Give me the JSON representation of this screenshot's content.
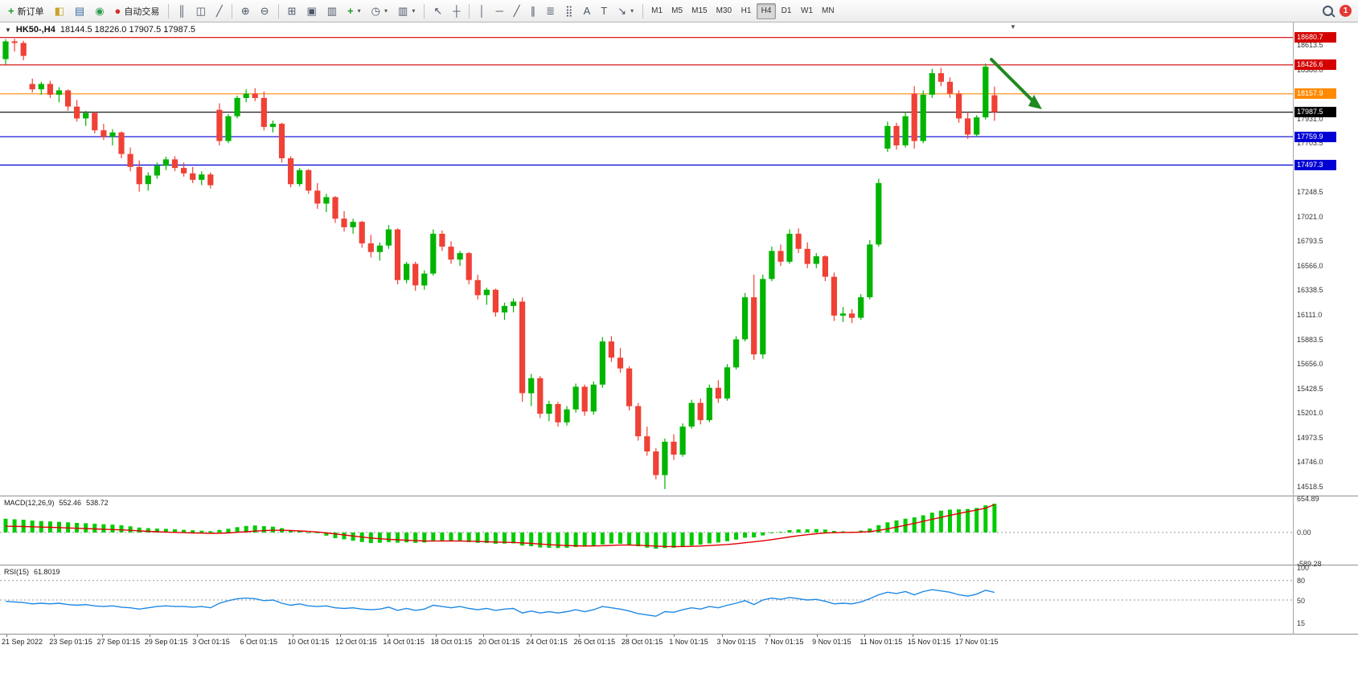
{
  "toolbar": {
    "new_order_label": "新订单",
    "autotrade_label": "自动交易",
    "timeframes": [
      "M1",
      "M5",
      "M15",
      "M30",
      "H1",
      "H4",
      "D1",
      "W1",
      "MN"
    ],
    "active_timeframe": "H4",
    "notification_count": "1"
  },
  "icons": {
    "new_order": "+",
    "market_watch": "◧",
    "data_window": "▤",
    "navigator": "◉",
    "autotrade": "●",
    "bars": "║",
    "candles": "◫",
    "line_chart": "╱",
    "zoom_in": "⊕",
    "zoom_out": "⊖",
    "tile": "⊞",
    "window_h": "▣",
    "window_v": "▥",
    "add": "+",
    "clock": "◷",
    "shift": "▥",
    "cursor": "↖",
    "crosshair": "┼",
    "vline": "│",
    "hline": "─",
    "trendline": "╱",
    "channel": "∥",
    "fibonacci": "≣",
    "shapes": "⣿",
    "text": "A",
    "label": "T",
    "arrows": "↘",
    "dropdown": "▾",
    "collapse": "▼",
    "shift_marker": "▼"
  },
  "chart": {
    "symbol_period": "HK50-,H4",
    "ohlc_text": "18144.5 18226.0 17907.5 17987.5"
  },
  "levels": [
    {
      "price": 18680.7,
      "label": "18680.7",
      "color": "#d40000"
    },
    {
      "price": 18426.6,
      "label": "18426.6",
      "color": "#d40000"
    },
    {
      "price": 18157.9,
      "label": "18157.9",
      "color": "#ff8a00"
    },
    {
      "price": 17987.5,
      "label": "17987.5",
      "color": "#000000"
    },
    {
      "price": 17759.9,
      "label": "17759.9",
      "color": "#0000d4"
    },
    {
      "price": 17497.3,
      "label": "17497.3",
      "color": "#0000d4"
    }
  ],
  "price_axis": {
    "labels": [
      "18613.5",
      "18386.0",
      "18158.5",
      "17931.0",
      "17703.5",
      "17476.0",
      "17248.5",
      "17021.0",
      "16793.5",
      "16566.0",
      "16338.5",
      "16111.0",
      "15883.5",
      "15656.0",
      "15428.5",
      "15201.0",
      "14973.5",
      "14746.0",
      "14518.5"
    ]
  },
  "macd_panel": {
    "title": "MACD(12,26,9)",
    "value_main": "552.46",
    "value_signal": "538.72",
    "axis_labels": [
      "654.89",
      "0.00",
      "-589.28"
    ]
  },
  "rsi_panel": {
    "title": "RSI(15)",
    "value": "61.8019",
    "axis_labels": [
      "100",
      "80",
      "50",
      "15"
    ]
  },
  "time_axis": {
    "labels": [
      "21 Sep 2022",
      "23 Sep 01:15",
      "27 Sep 01:15",
      "29 Sep 01:15",
      "3 Oct 01:15",
      "6 Oct 01:15",
      "10 Oct 01:15",
      "12 Oct 01:15",
      "14 Oct 01:15",
      "18 Oct 01:15",
      "20 Oct 01:15",
      "24 Oct 01:15",
      "26 Oct 01:15",
      "28 Oct 01:15",
      "1 Nov 01:15",
      "3 Nov 01:15",
      "7 Nov 01:15",
      "9 Nov 01:15",
      "11 Nov 01:15",
      "15 Nov 01:15",
      "17 Nov 01:15"
    ]
  },
  "colors": {
    "candle_up": "#00b400",
    "candle_down": "#ef4135",
    "macd_bar": "#00cc00",
    "macd_signal": "#e00000",
    "rsi_line": "#1e88e5",
    "arrow": "#1f8a1f",
    "grid_dash": "#999999"
  },
  "chart_data": {
    "type": "candlestick",
    "symbol": "HK50-",
    "period": "H4",
    "ylim": [
      14430,
      18820
    ],
    "ohlc": [
      [
        18480,
        18665,
        18430,
        18645
      ],
      [
        18645,
        18670,
        18550,
        18630
      ],
      [
        18630,
        18650,
        18470,
        18510
      ],
      [
        18250,
        18300,
        18170,
        18200
      ],
      [
        18200,
        18270,
        18150,
        18250
      ],
      [
        18250,
        18280,
        18120,
        18150
      ],
      [
        18150,
        18220,
        18080,
        18190
      ],
      [
        18190,
        18200,
        18000,
        18040
      ],
      [
        18040,
        18100,
        17900,
        17930
      ],
      [
        17930,
        18000,
        17860,
        17980
      ],
      [
        17980,
        17990,
        17790,
        17820
      ],
      [
        17820,
        17880,
        17730,
        17760
      ],
      [
        17760,
        17830,
        17680,
        17800
      ],
      [
        17800,
        17810,
        17560,
        17600
      ],
      [
        17600,
        17660,
        17440,
        17480
      ],
      [
        17480,
        17540,
        17250,
        17320
      ],
      [
        17320,
        17430,
        17260,
        17400
      ],
      [
        17400,
        17520,
        17370,
        17490
      ],
      [
        17490,
        17575,
        17450,
        17550
      ],
      [
        17550,
        17580,
        17440,
        17470
      ],
      [
        17470,
        17520,
        17390,
        17420
      ],
      [
        17420,
        17480,
        17330,
        17360
      ],
      [
        17360,
        17440,
        17310,
        17410
      ],
      [
        17410,
        17430,
        17280,
        17310
      ],
      [
        18010,
        18070,
        17680,
        17720
      ],
      [
        17720,
        17970,
        17700,
        17950
      ],
      [
        17950,
        18140,
        17930,
        18120
      ],
      [
        18120,
        18200,
        18080,
        18160
      ],
      [
        18160,
        18210,
        18090,
        18120
      ],
      [
        18120,
        18180,
        17820,
        17850
      ],
      [
        17850,
        17910,
        17800,
        17880
      ],
      [
        17880,
        17890,
        17520,
        17560
      ],
      [
        17560,
        17580,
        17290,
        17320
      ],
      [
        17320,
        17470,
        17300,
        17450
      ],
      [
        17450,
        17460,
        17230,
        17260
      ],
      [
        17260,
        17330,
        17090,
        17140
      ],
      [
        17140,
        17230,
        17060,
        17200
      ],
      [
        17200,
        17210,
        16960,
        17000
      ],
      [
        17000,
        17070,
        16880,
        16920
      ],
      [
        16920,
        17000,
        16860,
        16970
      ],
      [
        16970,
        16980,
        16730,
        16770
      ],
      [
        16770,
        16850,
        16640,
        16690
      ],
      [
        16690,
        16780,
        16610,
        16750
      ],
      [
        16750,
        16940,
        16720,
        16900
      ],
      [
        16900,
        16910,
        16390,
        16430
      ],
      [
        16430,
        16600,
        16400,
        16580
      ],
      [
        16580,
        16600,
        16330,
        16380
      ],
      [
        16380,
        16520,
        16340,
        16490
      ],
      [
        16490,
        16900,
        16470,
        16860
      ],
      [
        16860,
        16890,
        16700,
        16740
      ],
      [
        16740,
        16790,
        16580,
        16620
      ],
      [
        16620,
        16700,
        16560,
        16680
      ],
      [
        16680,
        16690,
        16390,
        16430
      ],
      [
        16430,
        16480,
        16250,
        16290
      ],
      [
        16290,
        16360,
        16200,
        16340
      ],
      [
        16340,
        16350,
        16090,
        16130
      ],
      [
        16130,
        16220,
        16060,
        16190
      ],
      [
        16190,
        16260,
        16130,
        16230
      ],
      [
        16230,
        16270,
        15300,
        15380
      ],
      [
        15380,
        15560,
        15260,
        15520
      ],
      [
        15520,
        15540,
        15150,
        15190
      ],
      [
        15190,
        15310,
        15120,
        15280
      ],
      [
        15280,
        15300,
        15070,
        15110
      ],
      [
        15110,
        15260,
        15080,
        15230
      ],
      [
        15230,
        15470,
        15200,
        15440
      ],
      [
        15440,
        15460,
        15170,
        15210
      ],
      [
        15210,
        15490,
        15180,
        15460
      ],
      [
        15460,
        15900,
        15430,
        15860
      ],
      [
        15860,
        15910,
        15670,
        15710
      ],
      [
        15710,
        15800,
        15570,
        15610
      ],
      [
        15610,
        15630,
        15220,
        15260
      ],
      [
        15260,
        15290,
        14940,
        14980
      ],
      [
        14980,
        15070,
        14800,
        14840
      ],
      [
        14840,
        14870,
        14580,
        14620
      ],
      [
        14620,
        14960,
        14490,
        14930
      ],
      [
        14930,
        15000,
        14760,
        14810
      ],
      [
        14810,
        15100,
        14790,
        15070
      ],
      [
        15070,
        15320,
        15050,
        15290
      ],
      [
        15290,
        15330,
        15090,
        15130
      ],
      [
        15130,
        15460,
        15110,
        15430
      ],
      [
        15430,
        15500,
        15290,
        15330
      ],
      [
        15330,
        15650,
        15310,
        15620
      ],
      [
        15620,
        15910,
        15600,
        15880
      ],
      [
        15880,
        16310,
        15860,
        16270
      ],
      [
        16270,
        16480,
        15690,
        15740
      ],
      [
        15740,
        16480,
        15700,
        16440
      ],
      [
        16440,
        16740,
        16420,
        16700
      ],
      [
        16700,
        16760,
        16560,
        16600
      ],
      [
        16600,
        16900,
        16580,
        16860
      ],
      [
        16860,
        16910,
        16680,
        16720
      ],
      [
        16720,
        16780,
        16540,
        16580
      ],
      [
        16580,
        16680,
        16540,
        16650
      ],
      [
        16650,
        16660,
        16420,
        16460
      ],
      [
        16460,
        16500,
        16050,
        16100
      ],
      [
        16100,
        16180,
        16040,
        16120
      ],
      [
        16120,
        16160,
        16030,
        16080
      ],
      [
        16080,
        16300,
        16060,
        16270
      ],
      [
        16270,
        16800,
        16250,
        16760
      ],
      [
        16760,
        17370,
        16740,
        17330
      ],
      [
        17650,
        17900,
        17620,
        17860
      ],
      [
        17860,
        17890,
        17640,
        17680
      ],
      [
        17680,
        17990,
        17660,
        17950
      ],
      [
        18160,
        18230,
        17650,
        17720
      ],
      [
        17720,
        18190,
        17700,
        18150
      ],
      [
        18150,
        18390,
        18120,
        18350
      ],
      [
        18350,
        18400,
        18230,
        18270
      ],
      [
        18270,
        18310,
        18120,
        18160
      ],
      [
        18160,
        18190,
        17890,
        17930
      ],
      [
        17930,
        17990,
        17740,
        17780
      ],
      [
        17780,
        17960,
        17760,
        17940
      ],
      [
        17940,
        18440,
        17920,
        18410
      ],
      [
        18144.5,
        18226.0,
        17907.5,
        17987.5
      ]
    ],
    "macd": {
      "range": [
        -620,
        680
      ],
      "hist": [
        265,
        255,
        245,
        230,
        220,
        212,
        205,
        195,
        185,
        178,
        168,
        158,
        150,
        138,
        118,
        95,
        82,
        75,
        70,
        62,
        52,
        42,
        35,
        26,
        48,
        72,
        102,
        126,
        136,
        122,
        112,
        82,
        42,
        20,
        -6,
        -16,
        -62,
        -110,
        -132,
        -160,
        -184,
        -204,
        -198,
        -184,
        -196,
        -190,
        -200,
        -194,
        -170,
        -162,
        -160,
        -172,
        -186,
        -200,
        -202,
        -216,
        -214,
        -210,
        -252,
        -266,
        -290,
        -296,
        -300,
        -294,
        -280,
        -274,
        -258,
        -230,
        -214,
        -216,
        -236,
        -266,
        -292,
        -312,
        -300,
        -294,
        -274,
        -250,
        -234,
        -210,
        -194,
        -168,
        -138,
        -100,
        -96,
        -58,
        -14,
        12,
        46,
        60,
        62,
        66,
        56,
        30,
        22,
        16,
        36,
        76,
        142,
        196,
        232,
        266,
        292,
        332,
        382,
        420,
        440,
        446,
        452,
        472,
        522,
        552.46
      ],
      "signal": [
        120,
        118,
        115,
        110,
        105,
        100,
        95,
        88,
        81,
        75,
        68,
        62,
        57,
        50,
        42,
        32,
        22,
        14,
        8,
        2,
        -3,
        -8,
        -12,
        -16,
        -15,
        -8,
        3,
        15,
        27,
        36,
        42,
        42,
        38,
        30,
        20,
        10,
        -8,
        -28,
        -48,
        -68,
        -88,
        -106,
        -120,
        -131,
        -141,
        -149,
        -157,
        -163,
        -165,
        -165,
        -164,
        -165,
        -168,
        -173,
        -178,
        -184,
        -189,
        -192,
        -200,
        -210,
        -222,
        -234,
        -244,
        -252,
        -257,
        -260,
        -260,
        -255,
        -248,
        -243,
        -242,
        -246,
        -253,
        -262,
        -268,
        -271,
        -271,
        -267,
        -261,
        -252,
        -243,
        -231,
        -216,
        -197,
        -181,
        -161,
        -137,
        -112,
        -86,
        -62,
        -42,
        -24,
        -11,
        -4,
        0,
        2,
        7,
        18,
        40,
        70,
        105,
        140,
        176,
        214,
        254,
        292,
        330,
        366,
        400,
        434,
        468,
        538.72
      ]
    },
    "rsi": {
      "range": [
        -2,
        102
      ],
      "levels": [
        80,
        50
      ],
      "values": [
        48,
        47,
        46,
        44,
        45,
        44,
        45,
        43,
        42,
        43,
        41,
        40,
        41,
        39,
        38,
        36,
        38,
        40,
        41,
        40,
        40,
        39,
        40,
        38,
        45,
        49,
        52,
        53,
        52,
        49,
        50,
        45,
        42,
        44,
        41,
        40,
        41,
        38,
        37,
        38,
        36,
        35,
        36,
        39,
        34,
        37,
        34,
        36,
        42,
        40,
        38,
        40,
        37,
        35,
        37,
        34,
        36,
        37,
        30,
        33,
        30,
        32,
        30,
        32,
        35,
        32,
        35,
        40,
        38,
        36,
        33,
        29,
        27,
        25,
        32,
        31,
        35,
        38,
        36,
        40,
        38,
        42,
        45,
        49,
        43,
        50,
        53,
        51,
        54,
        52,
        50,
        51,
        48,
        44,
        45,
        44,
        47,
        52,
        58,
        62,
        60,
        63,
        58,
        63,
        66,
        64,
        62,
        58,
        56,
        59,
        65,
        61.8
      ]
    }
  }
}
